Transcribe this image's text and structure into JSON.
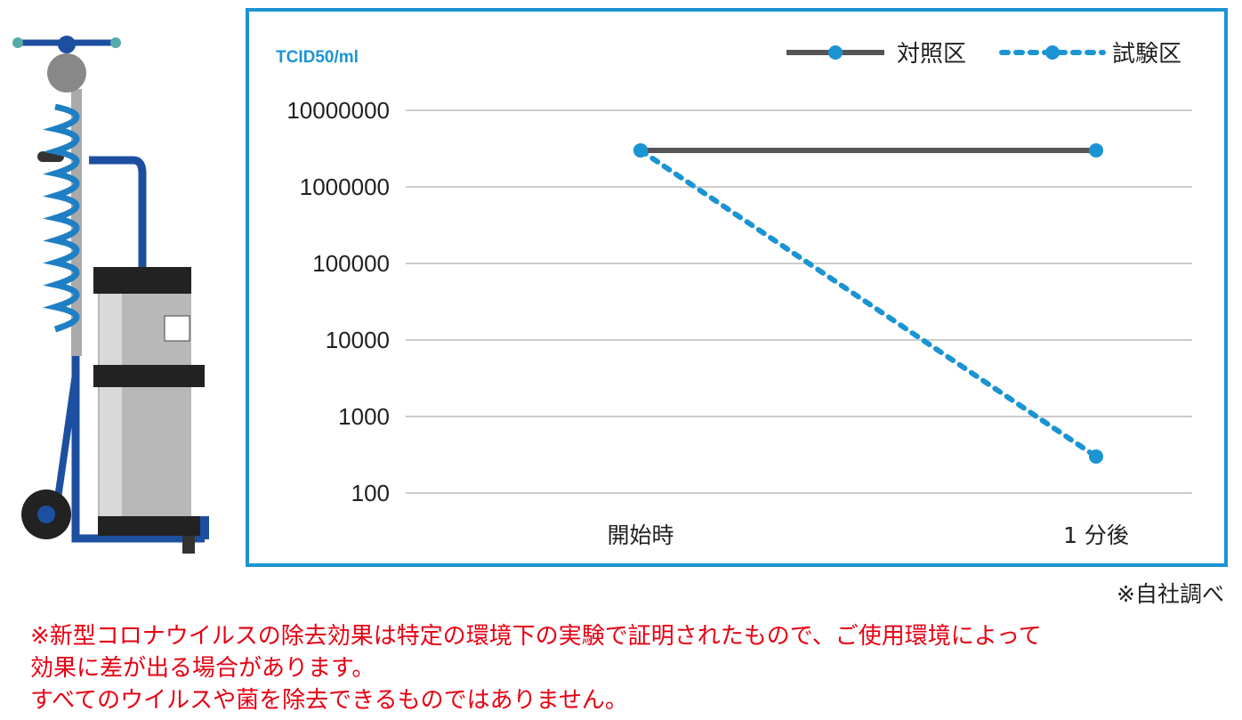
{
  "colors": {
    "frame": "#1a94d3",
    "control": "#555555",
    "test": "#1a94d3",
    "grid": "#cccccc",
    "disclaimer": "#e60012"
  },
  "chart_data": {
    "type": "line",
    "scale": "log",
    "ylabel": "TCID50/ml",
    "categories": [
      "開始時",
      "1 分後"
    ],
    "yticks": [
      "10000000",
      "1000000",
      "100000",
      "10000",
      "1000",
      "100"
    ],
    "ytick_values": [
      10000000,
      1000000,
      100000,
      10000,
      1000,
      100
    ],
    "ylim": [
      100,
      10000000
    ],
    "grid": true,
    "legend_position": "top-right",
    "series": [
      {
        "name": "対照区",
        "style": "solid",
        "values": [
          3000000,
          3000000
        ]
      },
      {
        "name": "試験区",
        "style": "dotted",
        "values": [
          3000000,
          300
        ]
      }
    ]
  },
  "source_note": "※自社調べ",
  "disclaimer": {
    "line1": "※新型コロナウイルスの除去効果は特定の環境下の実験で証明されたもので、ご使用環境によって",
    "line2": "効果に差が出る場合があります。",
    "line3": "すべてのウイルスや菌を除去できるものではありません。"
  }
}
